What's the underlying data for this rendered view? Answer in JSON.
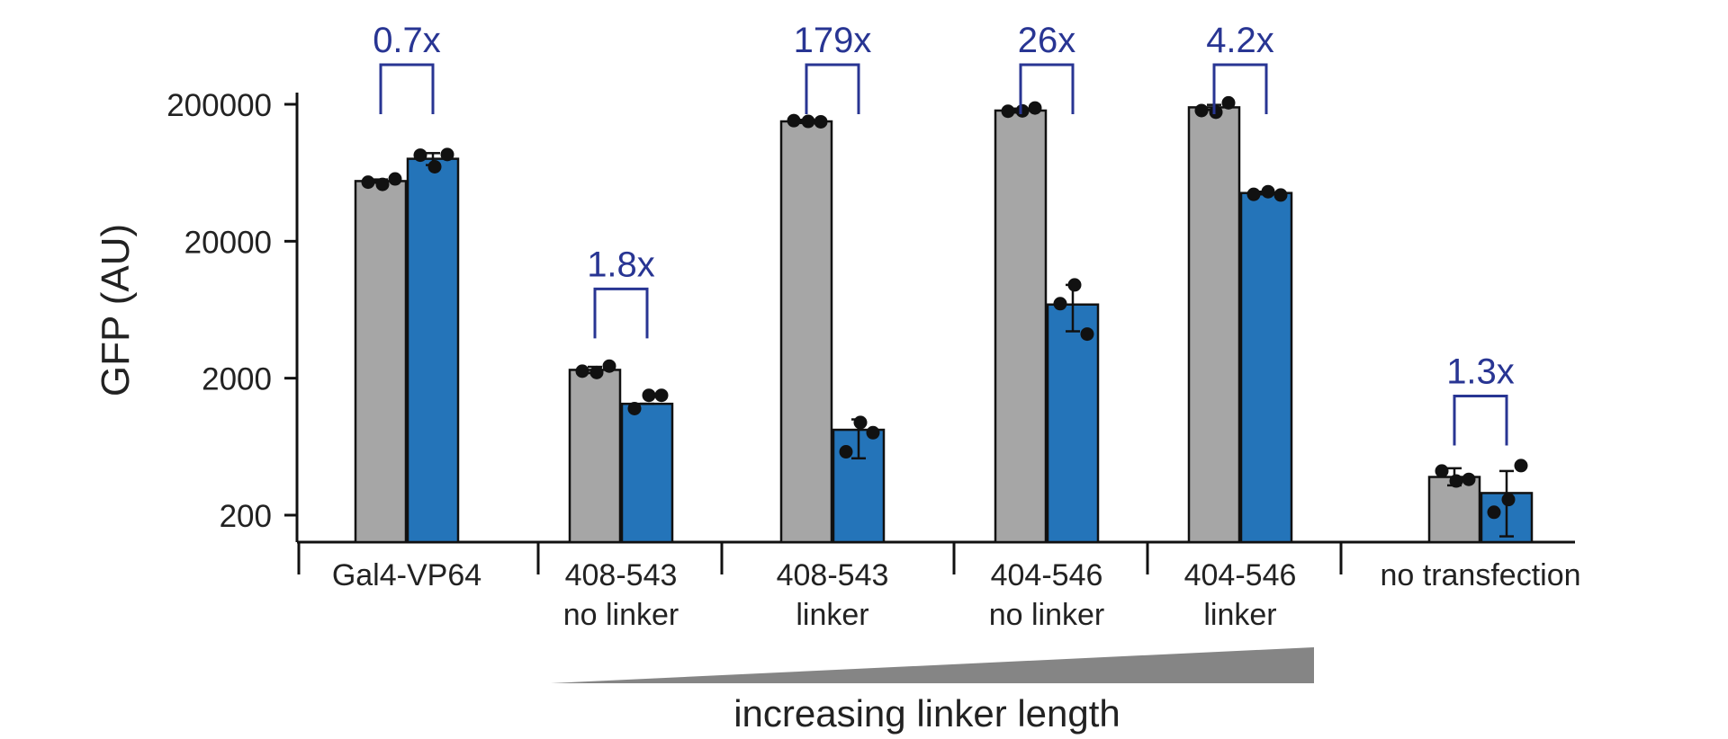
{
  "chart_data": {
    "type": "bar",
    "ylabel": "GFP (AU)",
    "xlabel": "",
    "title": "",
    "yscale": "log",
    "ylim": [
      120,
      360000
    ],
    "yticks": [
      200,
      2000,
      20000,
      200000
    ],
    "ytick_labels": [
      "200",
      "2000",
      "20000",
      "200000"
    ],
    "categories": [
      {
        "lines": [
          "Gal4-VP64"
        ]
      },
      {
        "lines": [
          "408-543",
          "no linker"
        ]
      },
      {
        "lines": [
          "408-543",
          "linker"
        ]
      },
      {
        "lines": [
          "404-546",
          "no linker"
        ]
      },
      {
        "lines": [
          "404-546",
          "linker"
        ]
      },
      {
        "lines": [
          "no transfection"
        ]
      }
    ],
    "series": [
      {
        "color": "#a6a6a6",
        "values": [
          55000,
          2300,
          150000,
          180000,
          190000,
          380
        ],
        "err_low": [
          53500,
          2180,
          146000,
          174000,
          182000,
          330
        ],
        "err_high": [
          56500,
          2420,
          154000,
          186000,
          198000,
          440
        ],
        "points": [
          [
            54000,
            52000,
            57000
          ],
          [
            2250,
            2200,
            2450
          ],
          [
            152000,
            150000,
            149000
          ],
          [
            178000,
            179000,
            188000
          ],
          [
            180000,
            175000,
            205000
          ],
          [
            420,
            355,
            365
          ]
        ]
      },
      {
        "color": "#2474b9",
        "values": [
          80000,
          1300,
          840,
          6900,
          45000,
          290
        ],
        "err_low": [
          72000,
          1300,
          520,
          4400,
          44000,
          140
        ],
        "err_high": [
          88000,
          1300,
          1000,
          9600,
          46000,
          420
        ],
        "points": [
          [
            85000,
            70000,
            86000
          ],
          [
            1200,
            1500,
            1500
          ],
          [
            580,
            950,
            800
          ],
          [
            7000,
            9600,
            4200
          ],
          [
            44000,
            46000,
            43500
          ],
          [
            210,
            260,
            460
          ]
        ]
      }
    ],
    "fold_changes": [
      "0.7x",
      "1.8x",
      "179x",
      "26x",
      "4.2x",
      "1.3x"
    ],
    "annotation_color": "#283593",
    "gradient_label": "increasing linker length",
    "grid": false,
    "legend": "none"
  }
}
